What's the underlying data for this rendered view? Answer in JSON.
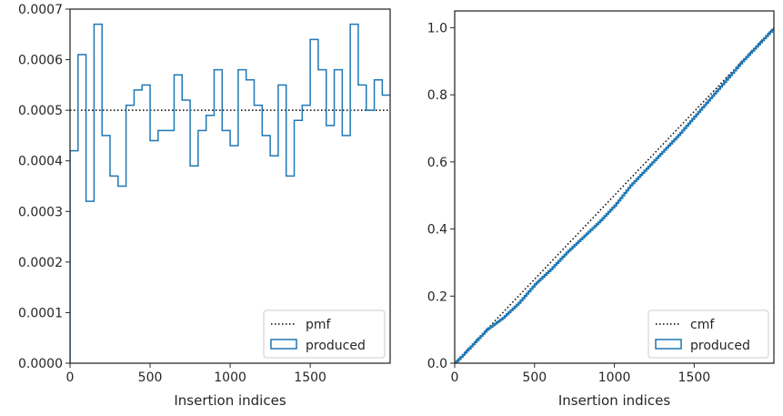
{
  "chart_data": [
    {
      "type": "step",
      "xlabel": "Insertion indices",
      "ylabel": "",
      "xlim": [
        0,
        1999
      ],
      "ylim": [
        0,
        0.0007
      ],
      "xticks": [
        0,
        500,
        1000,
        1500
      ],
      "yticks": [
        0,
        0.0001,
        0.0002,
        0.0003,
        0.0004,
        0.0005,
        0.0006,
        0.0007
      ],
      "ytick_labels": [
        "0.0000",
        "0.0001",
        "0.0002",
        "0.0003",
        "0.0004",
        "0.0005",
        "0.0006",
        "0.0007"
      ],
      "legend_position": "lower-right",
      "series": [
        {
          "name": "pmf",
          "style": "dotted",
          "color": "#000000",
          "values": [
            0.0005
          ]
        },
        {
          "name": "produced",
          "style": "step",
          "color": "#1f77b4",
          "bin_width": 50,
          "values": [
            0.00042,
            0.00061,
            0.00032,
            0.00067,
            0.00045,
            0.00037,
            0.00035,
            0.00051,
            0.00054,
            0.00055,
            0.00044,
            0.00046,
            0.00046,
            0.00057,
            0.00052,
            0.00039,
            0.00046,
            0.00049,
            0.00058,
            0.00046,
            0.00043,
            0.00058,
            0.00056,
            0.00051,
            0.00045,
            0.00041,
            0.00055,
            0.00037,
            0.00048,
            0.00051,
            0.00064,
            0.00058,
            0.00047,
            0.00058,
            0.00045,
            0.00067,
            0.00055,
            0.0005,
            0.00056,
            0.00053
          ]
        }
      ]
    },
    {
      "type": "line",
      "xlabel": "Insertion indices",
      "ylabel": "",
      "xlim": [
        0,
        1999
      ],
      "ylim": [
        0,
        1.05
      ],
      "xticks": [
        0,
        500,
        1000,
        1500
      ],
      "yticks": [
        0,
        0.2,
        0.4,
        0.6,
        0.8,
        1.0
      ],
      "ytick_labels": [
        "0.0",
        "0.2",
        "0.4",
        "0.6",
        "0.8",
        "1.0"
      ],
      "legend_position": "lower-right",
      "series": [
        {
          "name": "cmf",
          "style": "dotted",
          "color": "#000000",
          "x": [
            0,
            1999
          ],
          "y": [
            0,
            1.0
          ]
        },
        {
          "name": "produced",
          "style": "step",
          "color": "#1f77b4",
          "x": [
            0,
            100,
            200,
            300,
            400,
            500,
            600,
            700,
            800,
            900,
            1000,
            1100,
            1200,
            1300,
            1400,
            1500,
            1600,
            1700,
            1800,
            1900,
            1999
          ],
          "y": [
            0,
            0.05,
            0.1,
            0.135,
            0.18,
            0.235,
            0.28,
            0.33,
            0.375,
            0.42,
            0.47,
            0.53,
            0.58,
            0.63,
            0.68,
            0.735,
            0.79,
            0.845,
            0.9,
            0.95,
            1.0
          ]
        }
      ]
    }
  ]
}
